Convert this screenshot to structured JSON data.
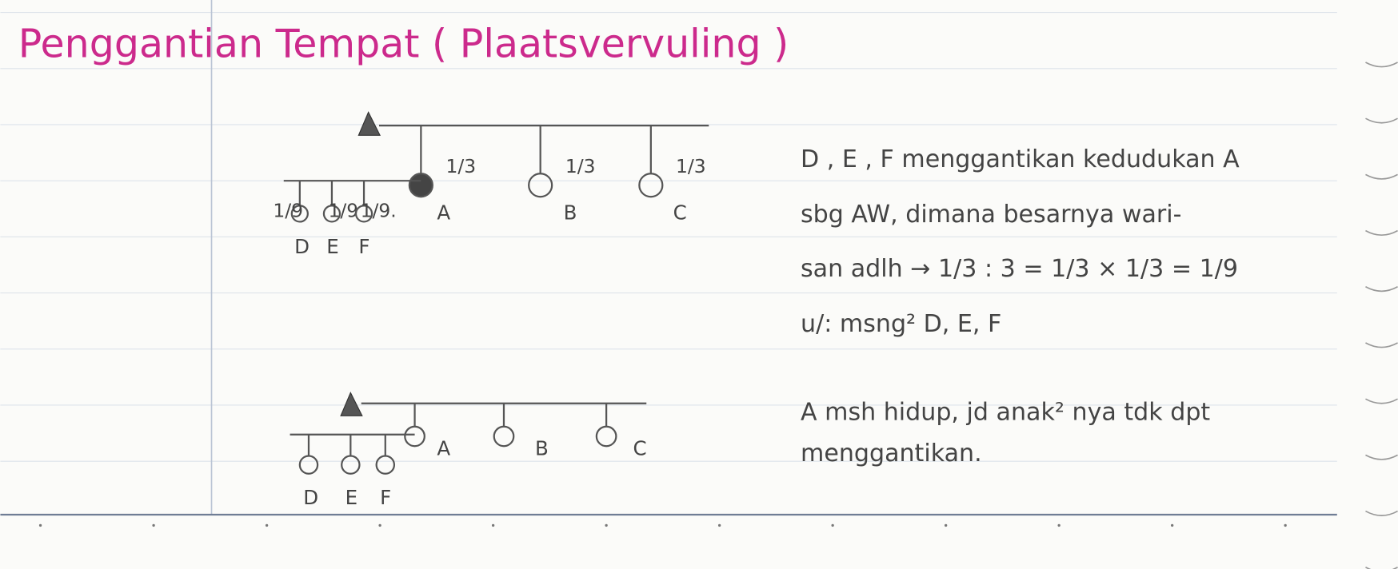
{
  "title": "Penggantian Tempat ( Plaatsvervuling )",
  "diagrams": [
    {
      "children": [
        {
          "label": "A",
          "share": "1/3"
        },
        {
          "label": "B",
          "share": "1/3"
        },
        {
          "label": "C",
          "share": "1/3"
        }
      ],
      "grandchildren": [
        {
          "label": "D",
          "share": "1/9"
        },
        {
          "label": "E",
          "share": "1/9"
        },
        {
          "label": "F",
          "share": "1/9."
        }
      ]
    },
    {
      "children": [
        {
          "label": "A"
        },
        {
          "label": "B"
        },
        {
          "label": "C"
        }
      ],
      "grandchildren": [
        {
          "label": "D"
        },
        {
          "label": "E"
        },
        {
          "label": "F"
        }
      ]
    }
  ],
  "notes": [
    {
      "lines": [
        "D , E , F menggantikan kedudukan A",
        "sbg AW, dimana besarnya wari-",
        "san adlh → 1/3 : 3 = 1/3 × 1/3 = 1/9",
        "u/: msng² D, E, F"
      ]
    },
    {
      "lines": [
        "A msh hidup, jd anak² nya tdk dpt",
        "menggantikan."
      ]
    }
  ]
}
